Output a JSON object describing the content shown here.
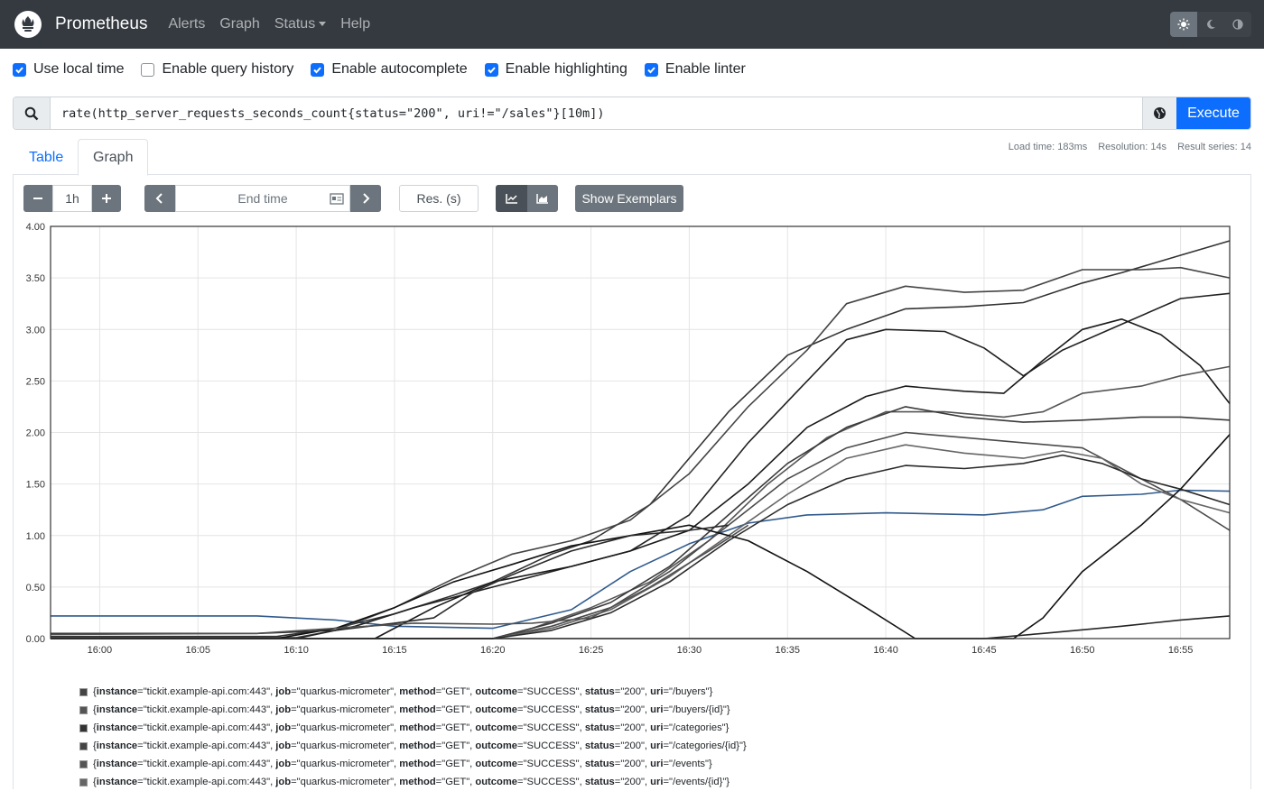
{
  "navbar": {
    "brand": "Prometheus",
    "links": [
      "Alerts",
      "Graph",
      "Status",
      "Help"
    ]
  },
  "options": [
    {
      "label": "Use local time",
      "checked": true
    },
    {
      "label": "Enable query history",
      "checked": false
    },
    {
      "label": "Enable autocomplete",
      "checked": true
    },
    {
      "label": "Enable highlighting",
      "checked": true
    },
    {
      "label": "Enable linter",
      "checked": true
    }
  ],
  "query": {
    "expression": "rate(http_server_requests_seconds_count{status=\"200\", uri!=\"/sales\"}[10m])",
    "execute_label": "Execute"
  },
  "tabs": {
    "table": "Table",
    "graph": "Graph"
  },
  "stats": {
    "load_time": "Load time: 183ms",
    "resolution": "Resolution: 14s",
    "result_series": "Result series: 14"
  },
  "controls": {
    "range": "1h",
    "end_time_placeholder": "End time",
    "res_placeholder": "Res. (s)",
    "exemplars_label": "Show Exemplars"
  },
  "colors": {
    "accent": "#0d6efd",
    "navbar": "#343a40",
    "button_dark": "#6c757d"
  },
  "chart_data": {
    "type": "line",
    "xlabel": "",
    "ylabel": "",
    "y_ticks": [
      "0.00",
      "0.50",
      "1.00",
      "1.50",
      "2.00",
      "2.50",
      "3.00",
      "3.50",
      "4.00"
    ],
    "x_ticks": [
      "16:00",
      "16:05",
      "16:10",
      "16:15",
      "16:20",
      "16:25",
      "16:30",
      "16:35",
      "16:40",
      "16:45",
      "16:50",
      "16:55"
    ],
    "ylim": [
      0,
      4
    ],
    "xlim_minutes": [
      -2.5,
      57.5
    ],
    "x_tick_minutes": [
      0,
      5,
      10,
      15,
      20,
      25,
      30,
      35,
      40,
      45,
      50,
      55
    ],
    "series": [
      {
        "color": "#2f5a8c",
        "points": [
          [
            -2.5,
            0.22
          ],
          [
            8,
            0.22
          ],
          [
            12,
            0.18
          ],
          [
            15,
            0.12
          ],
          [
            20,
            0.1
          ],
          [
            24,
            0.28
          ],
          [
            27,
            0.65
          ],
          [
            30,
            0.92
          ],
          [
            33,
            1.12
          ],
          [
            36,
            1.2
          ],
          [
            40,
            1.22
          ],
          [
            45,
            1.2
          ],
          [
            48,
            1.25
          ],
          [
            50,
            1.38
          ],
          [
            53,
            1.4
          ],
          [
            55,
            1.44
          ],
          [
            57.5,
            1.43
          ]
        ]
      },
      {
        "color": "#333333",
        "points": [
          [
            -2.5,
            0.02
          ],
          [
            9,
            0.02
          ],
          [
            12,
            0.1
          ],
          [
            15,
            0.24
          ],
          [
            18,
            0.42
          ],
          [
            20,
            0.55
          ],
          [
            23,
            0.82
          ],
          [
            25,
            0.95
          ],
          [
            28,
            1.3
          ],
          [
            32,
            2.2
          ],
          [
            35,
            2.75
          ],
          [
            38,
            3.0
          ],
          [
            41,
            3.2
          ],
          [
            44,
            3.22
          ],
          [
            47,
            3.26
          ],
          [
            50,
            3.45
          ],
          [
            52,
            3.55
          ],
          [
            55,
            3.72
          ],
          [
            57.5,
            3.86
          ]
        ]
      },
      {
        "color": "#444444",
        "points": [
          [
            -2.5,
            0.01
          ],
          [
            10,
            0.01
          ],
          [
            12,
            0.08
          ],
          [
            15,
            0.3
          ],
          [
            18,
            0.58
          ],
          [
            21,
            0.82
          ],
          [
            24,
            0.95
          ],
          [
            27,
            1.15
          ],
          [
            30,
            1.6
          ],
          [
            33,
            2.25
          ],
          [
            36,
            2.8
          ],
          [
            38,
            3.25
          ],
          [
            41,
            3.42
          ],
          [
            44,
            3.36
          ],
          [
            47,
            3.38
          ],
          [
            50,
            3.58
          ],
          [
            53,
            3.58
          ],
          [
            55,
            3.6
          ],
          [
            57.5,
            3.5
          ]
        ]
      },
      {
        "color": "#222222",
        "points": [
          [
            -2.5,
            0.0
          ],
          [
            10,
            0.0
          ],
          [
            13,
            0.12
          ],
          [
            16,
            0.3
          ],
          [
            20,
            0.5
          ],
          [
            24,
            0.7
          ],
          [
            27,
            0.85
          ],
          [
            30,
            1.2
          ],
          [
            33,
            1.9
          ],
          [
            36,
            2.5
          ],
          [
            38,
            2.9
          ],
          [
            40,
            3.0
          ],
          [
            43,
            2.98
          ],
          [
            45,
            2.82
          ],
          [
            47,
            2.55
          ],
          [
            49,
            2.8
          ],
          [
            52,
            3.05
          ],
          [
            55,
            3.3
          ],
          [
            57.5,
            3.35
          ]
        ]
      },
      {
        "color": "#1a1a1a",
        "points": [
          [
            -2.5,
            0.0
          ],
          [
            14,
            0.0
          ],
          [
            17,
            0.3
          ],
          [
            20,
            0.55
          ],
          [
            24,
            0.7
          ],
          [
            27,
            0.85
          ],
          [
            30,
            1.05
          ],
          [
            33,
            1.5
          ],
          [
            36,
            2.05
          ],
          [
            39,
            2.35
          ],
          [
            41,
            2.45
          ],
          [
            44,
            2.4
          ],
          [
            46,
            2.38
          ],
          [
            48,
            2.7
          ],
          [
            50,
            3.0
          ],
          [
            52,
            3.1
          ],
          [
            54,
            2.95
          ],
          [
            56,
            2.65
          ],
          [
            57.5,
            2.28
          ]
        ]
      },
      {
        "color": "#555555",
        "points": [
          [
            -2.5,
            0.0
          ],
          [
            20,
            0.0
          ],
          [
            22,
            0.1
          ],
          [
            25,
            0.3
          ],
          [
            28,
            0.55
          ],
          [
            31,
            0.95
          ],
          [
            34,
            1.5
          ],
          [
            37,
            1.95
          ],
          [
            40,
            2.2
          ],
          [
            43,
            2.2
          ],
          [
            46,
            2.15
          ],
          [
            48,
            2.2
          ],
          [
            50,
            2.38
          ],
          [
            53,
            2.45
          ],
          [
            55,
            2.55
          ],
          [
            57.5,
            2.64
          ]
        ]
      },
      {
        "color": "#3a3a3a",
        "points": [
          [
            -2.5,
            0.0
          ],
          [
            20,
            0.0
          ],
          [
            23,
            0.15
          ],
          [
            26,
            0.35
          ],
          [
            29,
            0.7
          ],
          [
            32,
            1.2
          ],
          [
            35,
            1.7
          ],
          [
            38,
            2.05
          ],
          [
            41,
            2.25
          ],
          [
            44,
            2.15
          ],
          [
            47,
            2.1
          ],
          [
            50,
            2.12
          ],
          [
            53,
            2.15
          ],
          [
            55,
            2.15
          ],
          [
            57.5,
            2.12
          ]
        ]
      },
      {
        "color": "#4a4a4a",
        "points": [
          [
            -2.5,
            0.0
          ],
          [
            20,
            0.0
          ],
          [
            23,
            0.12
          ],
          [
            26,
            0.3
          ],
          [
            29,
            0.65
          ],
          [
            32,
            1.1
          ],
          [
            35,
            1.55
          ],
          [
            38,
            1.85
          ],
          [
            41,
            2.0
          ],
          [
            44,
            1.95
          ],
          [
            47,
            1.9
          ],
          [
            50,
            1.85
          ],
          [
            53,
            1.55
          ],
          [
            55,
            1.35
          ],
          [
            57.5,
            1.05
          ]
        ]
      },
      {
        "color": "#666666",
        "points": [
          [
            -2.5,
            0.0
          ],
          [
            20,
            0.0
          ],
          [
            23,
            0.1
          ],
          [
            26,
            0.28
          ],
          [
            29,
            0.6
          ],
          [
            32,
            1.0
          ],
          [
            35,
            1.4
          ],
          [
            38,
            1.75
          ],
          [
            41,
            1.88
          ],
          [
            44,
            1.8
          ],
          [
            47,
            1.75
          ],
          [
            49,
            1.82
          ],
          [
            51,
            1.75
          ],
          [
            53,
            1.5
          ],
          [
            55,
            1.35
          ],
          [
            57.5,
            1.22
          ]
        ]
      },
      {
        "color": "#2a2a2a",
        "points": [
          [
            -2.5,
            0.0
          ],
          [
            20,
            0.0
          ],
          [
            23,
            0.08
          ],
          [
            26,
            0.25
          ],
          [
            29,
            0.55
          ],
          [
            32,
            0.95
          ],
          [
            35,
            1.3
          ],
          [
            38,
            1.55
          ],
          [
            41,
            1.68
          ],
          [
            44,
            1.65
          ],
          [
            47,
            1.7
          ],
          [
            49,
            1.78
          ],
          [
            51,
            1.7
          ],
          [
            53,
            1.55
          ],
          [
            55,
            1.45
          ],
          [
            57.5,
            1.3
          ]
        ]
      },
      {
        "color": "#111111",
        "points": [
          [
            -2.5,
            0.0
          ],
          [
            9,
            0.0
          ],
          [
            12,
            0.1
          ],
          [
            15,
            0.3
          ],
          [
            18,
            0.55
          ],
          [
            21,
            0.72
          ],
          [
            24,
            0.9
          ],
          [
            27,
            1.0
          ],
          [
            30,
            1.1
          ],
          [
            33,
            0.95
          ],
          [
            36,
            0.65
          ],
          [
            39,
            0.3
          ],
          [
            41.5,
            0.0
          ],
          [
            46.5,
            0.0
          ],
          [
            48,
            0.2
          ],
          [
            50,
            0.65
          ],
          [
            53,
            1.1
          ],
          [
            55,
            1.45
          ],
          [
            57.5,
            1.98
          ]
        ]
      },
      {
        "color": "#2b2b2b",
        "points": [
          [
            -2.5,
            0.05
          ],
          [
            8,
            0.05
          ],
          [
            12,
            0.08
          ],
          [
            15,
            0.15
          ],
          [
            17,
            0.2
          ],
          [
            19,
            0.45
          ],
          [
            21,
            0.62
          ],
          [
            24,
            0.85
          ],
          [
            27,
            1.0
          ],
          [
            30,
            1.05
          ],
          [
            32,
            1.1
          ]
        ]
      },
      {
        "color": "#505050",
        "points": [
          [
            -2.5,
            0.04
          ],
          [
            8,
            0.05
          ],
          [
            12,
            0.1
          ],
          [
            16,
            0.15
          ],
          [
            20,
            0.14
          ],
          [
            22,
            0.15
          ],
          [
            25,
            0.2
          ],
          [
            28,
            0.5
          ],
          [
            31,
            0.85
          ],
          [
            33,
            1.1
          ]
        ]
      },
      {
        "color": "#252525",
        "points": [
          [
            -2.5,
            0.0
          ],
          [
            45,
            0.0
          ],
          [
            48,
            0.05
          ],
          [
            52,
            0.12
          ],
          [
            55,
            0.18
          ],
          [
            57.5,
            0.22
          ]
        ]
      }
    ]
  },
  "legend": [
    {
      "instance": "\"tickit.example-api.com:443\"",
      "job": "\"quarkus-micrometer\"",
      "method": "\"GET\"",
      "outcome": "\"SUCCESS\"",
      "status": "\"200\"",
      "uri": "\"/buyers\""
    },
    {
      "instance": "\"tickit.example-api.com:443\"",
      "job": "\"quarkus-micrometer\"",
      "method": "\"GET\"",
      "outcome": "\"SUCCESS\"",
      "status": "\"200\"",
      "uri": "\"/buyers/{id}\""
    },
    {
      "instance": "\"tickit.example-api.com:443\"",
      "job": "\"quarkus-micrometer\"",
      "method": "\"GET\"",
      "outcome": "\"SUCCESS\"",
      "status": "\"200\"",
      "uri": "\"/categories\""
    },
    {
      "instance": "\"tickit.example-api.com:443\"",
      "job": "\"quarkus-micrometer\"",
      "method": "\"GET\"",
      "outcome": "\"SUCCESS\"",
      "status": "\"200\"",
      "uri": "\"/categories/{id}\""
    },
    {
      "instance": "\"tickit.example-api.com:443\"",
      "job": "\"quarkus-micrometer\"",
      "method": "\"GET\"",
      "outcome": "\"SUCCESS\"",
      "status": "\"200\"",
      "uri": "\"/events\""
    },
    {
      "instance": "\"tickit.example-api.com:443\"",
      "job": "\"quarkus-micrometer\"",
      "method": "\"GET\"",
      "outcome": "\"SUCCESS\"",
      "status": "\"200\"",
      "uri": "\"/events/{id}\""
    }
  ]
}
